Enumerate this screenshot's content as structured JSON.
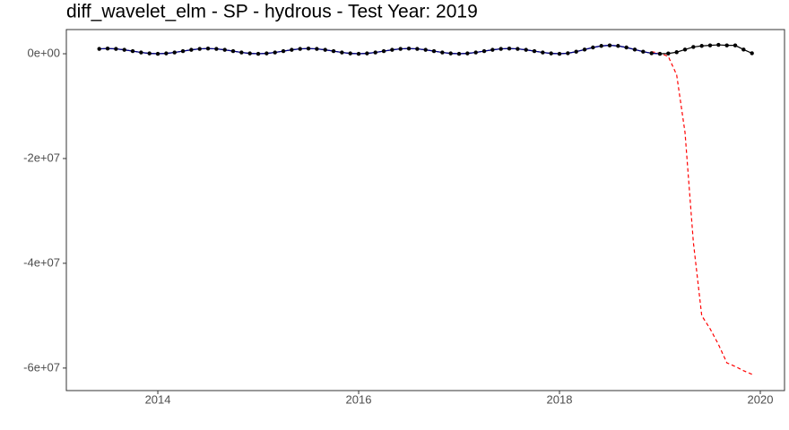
{
  "chart_data": {
    "type": "line",
    "title": "diff_wavelet_elm - SP - hydrous - Test Year: 2019",
    "x": [
      2013.4167,
      2013.5,
      2013.5833,
      2013.6667,
      2013.75,
      2013.8333,
      2013.9167,
      2014,
      2014.0833,
      2014.1667,
      2014.25,
      2014.3333,
      2014.4167,
      2014.5,
      2014.5833,
      2014.6667,
      2014.75,
      2014.8333,
      2014.9167,
      2015,
      2015.0833,
      2015.1667,
      2015.25,
      2015.3333,
      2015.4167,
      2015.5,
      2015.5833,
      2015.6667,
      2015.75,
      2015.8333,
      2015.9167,
      2016,
      2016.0833,
      2016.1667,
      2016.25,
      2016.3333,
      2016.4167,
      2016.5,
      2016.5833,
      2016.6667,
      2016.75,
      2016.8333,
      2016.9167,
      2017,
      2017.0833,
      2017.1667,
      2017.25,
      2017.3333,
      2017.4167,
      2017.5,
      2017.5833,
      2017.6667,
      2017.75,
      2017.8333,
      2017.9167,
      2018,
      2018.0833,
      2018.1667,
      2018.25,
      2018.3333,
      2018.4167,
      2018.5,
      2018.5833,
      2018.6667,
      2018.75,
      2018.8333,
      2018.9167,
      2019,
      2019.0833,
      2019.1667,
      2019.25,
      2019.3333,
      2019.4167,
      2019.5,
      2019.5833,
      2019.6667,
      2019.75,
      2019.8333,
      2019.9167
    ],
    "series": [
      {
        "color": "#000000",
        "markers": true,
        "dashed": false,
        "values": [
          933000,
          1000000,
          933000,
          750000,
          500000,
          250000,
          67000,
          0,
          67000,
          250000,
          500000,
          750000,
          933000,
          1000000,
          933000,
          750000,
          500000,
          250000,
          67000,
          0,
          67000,
          250000,
          500000,
          750000,
          933000,
          1000000,
          933000,
          750000,
          500000,
          250000,
          67000,
          0,
          67000,
          250000,
          500000,
          750000,
          933000,
          1000000,
          933000,
          750000,
          500000,
          250000,
          67000,
          0,
          67000,
          250000,
          500000,
          750000,
          933000,
          1000000,
          933000,
          750000,
          500000,
          250000,
          67000,
          0,
          100000,
          400000,
          800000,
          1200000,
          1500000,
          1600000,
          1500000,
          1200000,
          800000,
          400000,
          100000,
          0,
          50000,
          300000,
          800000,
          1300000,
          1500000,
          1600000,
          1700000,
          1600000,
          1600000,
          800000,
          100000
        ]
      },
      {
        "color": "#00008b",
        "markers": false,
        "dashed": false,
        "values": [
          933000,
          1000000,
          933000,
          750000,
          500000,
          250000,
          67000,
          0,
          67000,
          250000,
          500000,
          750000,
          933000,
          1000000,
          933000,
          750000,
          500000,
          250000,
          67000,
          0,
          67000,
          250000,
          500000,
          750000,
          933000,
          1000000,
          933000,
          750000,
          500000,
          250000,
          67000,
          0,
          67000,
          250000,
          500000,
          750000,
          933000,
          1000000,
          933000,
          750000,
          500000,
          250000,
          67000,
          0,
          67000,
          250000,
          500000,
          750000,
          933000,
          1000000,
          933000,
          750000,
          500000,
          250000,
          67000,
          0,
          100000,
          400000,
          800000,
          1200000,
          1500000,
          1600000,
          1500000,
          1200000,
          800000,
          400000,
          100000,
          0,
          null,
          null,
          null,
          null,
          null,
          null,
          null,
          null,
          null,
          null,
          null
        ]
      },
      {
        "color": "#ff0000",
        "markers": false,
        "dashed": true,
        "values": [
          null,
          null,
          null,
          null,
          null,
          null,
          null,
          null,
          null,
          null,
          null,
          null,
          null,
          null,
          null,
          null,
          null,
          null,
          null,
          null,
          null,
          null,
          null,
          null,
          null,
          null,
          null,
          null,
          null,
          null,
          null,
          null,
          null,
          null,
          null,
          null,
          null,
          null,
          null,
          null,
          null,
          null,
          null,
          null,
          null,
          null,
          null,
          null,
          null,
          null,
          null,
          null,
          null,
          null,
          null,
          null,
          null,
          null,
          null,
          null,
          null,
          null,
          null,
          null,
          null,
          null,
          400000,
          100000,
          -500000,
          -4000000,
          -15000000,
          -36000000,
          -50000000,
          -52500000,
          -55500000,
          -59000000,
          -59700000,
          -60500000,
          -61200000
        ]
      }
    ],
    "xlim": [
      2013.089,
      2020.241
    ],
    "xticks": [
      2014,
      2016,
      2018,
      2020
    ],
    "ylim": [
      -64300000,
      4620000
    ],
    "yticks": [
      {
        "value": 0,
        "label": "0e+00"
      },
      {
        "value": -20000000,
        "label": "-2e+07"
      },
      {
        "value": -40000000,
        "label": "-4e+07"
      },
      {
        "value": -60000000,
        "label": "-6e+07"
      }
    ],
    "grid": false
  }
}
